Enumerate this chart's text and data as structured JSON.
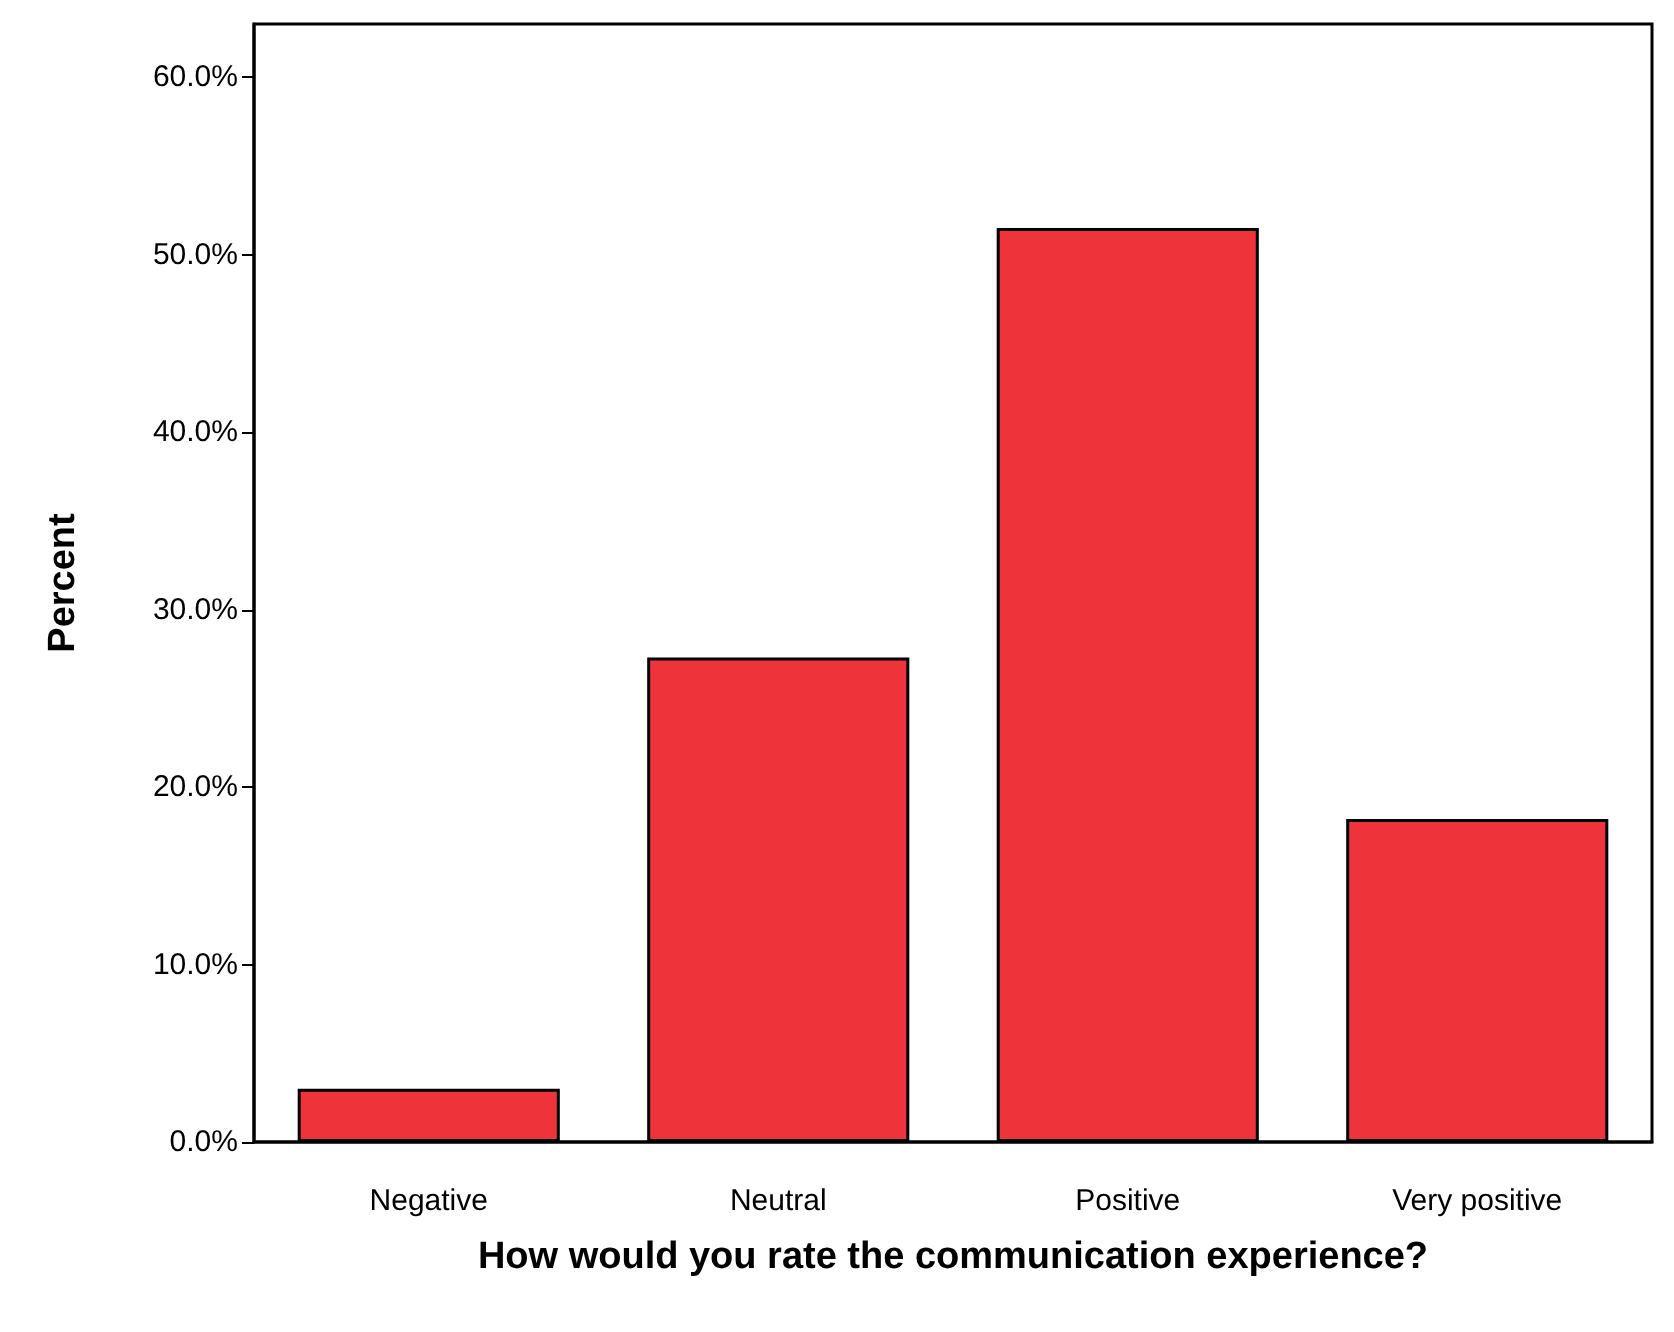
{
  "chart_data": {
    "type": "bar",
    "xlabel": "How would you rate the communication experience?",
    "ylabel": "Percent",
    "categories": [
      "Negative",
      "Neutral",
      "Positive",
      "Very positive"
    ],
    "values": [
      3.0,
      27.3,
      51.5,
      18.2
    ],
    "color": "#ef333a",
    "ylim": [
      0,
      63
    ],
    "yticks": [
      {
        "value": 0,
        "label": "0.0%"
      },
      {
        "value": 10,
        "label": "10.0%"
      },
      {
        "value": 20,
        "label": "20.0%"
      },
      {
        "value": 30,
        "label": "30.0%"
      },
      {
        "value": 40,
        "label": "40.0%"
      },
      {
        "value": 50,
        "label": "50.0%"
      },
      {
        "value": 60,
        "label": "60.0%"
      }
    ],
    "grid": false
  }
}
